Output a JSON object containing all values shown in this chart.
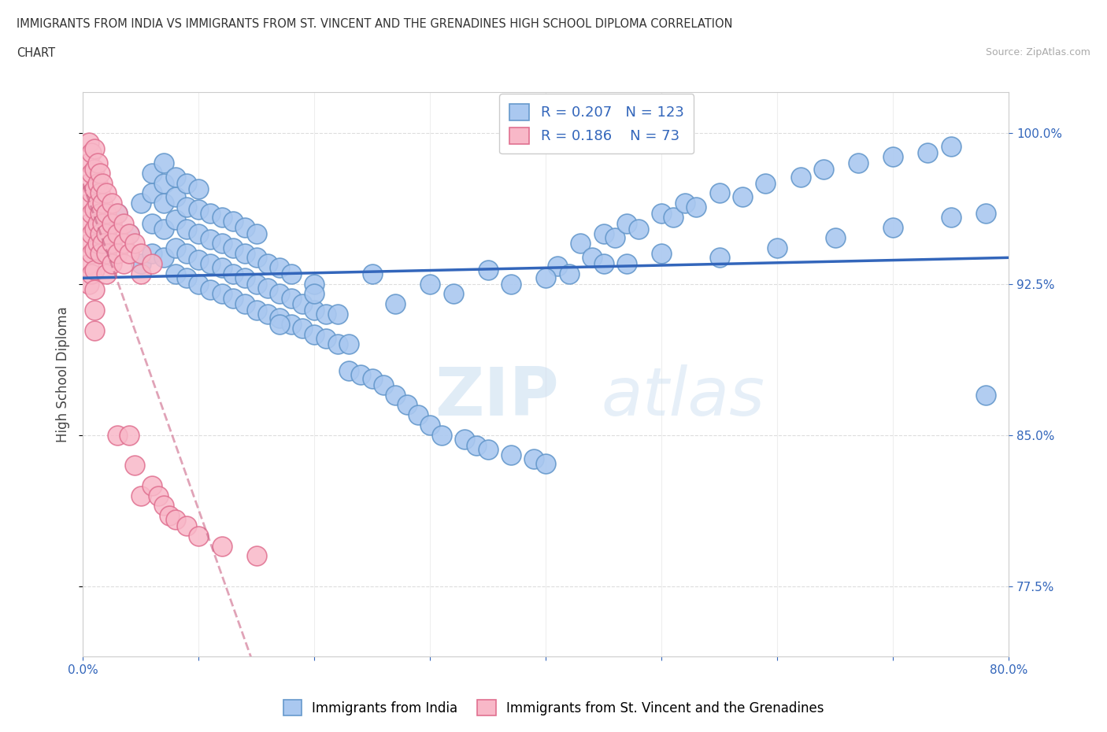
{
  "title_line1": "IMMIGRANTS FROM INDIA VS IMMIGRANTS FROM ST. VINCENT AND THE GRENADINES HIGH SCHOOL DIPLOMA CORRELATION",
  "title_line2": "CHART",
  "source": "Source: ZipAtlas.com",
  "ylabel": "High School Diploma",
  "xlim": [
    0.0,
    0.8
  ],
  "ylim": [
    0.74,
    1.02
  ],
  "india_color": "#aac8f0",
  "india_edge": "#6699cc",
  "india_R": 0.207,
  "india_N": 123,
  "india_line_color": "#3366bb",
  "svg_fill": "#f8b8c8",
  "svg_edge": "#e07090",
  "svg_R": 0.186,
  "svg_N": 73,
  "svg_line_color": "#cc6688",
  "legend_label_india": "Immigrants from India",
  "legend_label_svg": "Immigrants from St. Vincent and the Grenadines",
  "watermark_zip": "ZIP",
  "watermark_atlas": "atlas",
  "india_x": [
    0.02,
    0.03,
    0.04,
    0.05,
    0.05,
    0.06,
    0.06,
    0.06,
    0.06,
    0.07,
    0.07,
    0.07,
    0.07,
    0.07,
    0.08,
    0.08,
    0.08,
    0.08,
    0.08,
    0.09,
    0.09,
    0.09,
    0.09,
    0.09,
    0.1,
    0.1,
    0.1,
    0.1,
    0.1,
    0.11,
    0.11,
    0.11,
    0.11,
    0.12,
    0.12,
    0.12,
    0.12,
    0.13,
    0.13,
    0.13,
    0.13,
    0.14,
    0.14,
    0.14,
    0.14,
    0.15,
    0.15,
    0.15,
    0.15,
    0.16,
    0.16,
    0.16,
    0.17,
    0.17,
    0.17,
    0.18,
    0.18,
    0.18,
    0.19,
    0.19,
    0.2,
    0.2,
    0.2,
    0.21,
    0.21,
    0.22,
    0.23,
    0.23,
    0.24,
    0.25,
    0.26,
    0.27,
    0.28,
    0.29,
    0.3,
    0.31,
    0.33,
    0.34,
    0.35,
    0.37,
    0.39,
    0.4,
    0.41,
    0.43,
    0.44,
    0.45,
    0.46,
    0.47,
    0.48,
    0.5,
    0.51,
    0.52,
    0.53,
    0.55,
    0.57,
    0.59,
    0.62,
    0.64,
    0.67,
    0.7,
    0.73,
    0.75,
    0.78,
    0.2,
    0.25,
    0.3,
    0.35,
    0.4,
    0.45,
    0.5,
    0.55,
    0.6,
    0.65,
    0.7,
    0.75,
    0.78,
    0.17,
    0.22,
    0.27,
    0.32,
    0.37,
    0.42,
    0.47,
    0.52
  ],
  "india_y": [
    0.955,
    0.96,
    0.95,
    0.935,
    0.965,
    0.94,
    0.955,
    0.97,
    0.98,
    0.938,
    0.952,
    0.965,
    0.975,
    0.985,
    0.93,
    0.943,
    0.957,
    0.968,
    0.978,
    0.928,
    0.94,
    0.952,
    0.963,
    0.975,
    0.925,
    0.937,
    0.95,
    0.962,
    0.972,
    0.922,
    0.935,
    0.947,
    0.96,
    0.92,
    0.933,
    0.945,
    0.958,
    0.918,
    0.93,
    0.943,
    0.956,
    0.915,
    0.928,
    0.94,
    0.953,
    0.912,
    0.925,
    0.938,
    0.95,
    0.91,
    0.923,
    0.935,
    0.908,
    0.92,
    0.933,
    0.905,
    0.918,
    0.93,
    0.903,
    0.915,
    0.9,
    0.912,
    0.925,
    0.898,
    0.91,
    0.895,
    0.882,
    0.895,
    0.88,
    0.878,
    0.875,
    0.87,
    0.865,
    0.86,
    0.855,
    0.85,
    0.848,
    0.845,
    0.843,
    0.84,
    0.838,
    0.836,
    0.934,
    0.945,
    0.938,
    0.95,
    0.948,
    0.955,
    0.952,
    0.96,
    0.958,
    0.965,
    0.963,
    0.97,
    0.968,
    0.975,
    0.978,
    0.982,
    0.985,
    0.988,
    0.99,
    0.993,
    0.87,
    0.92,
    0.93,
    0.925,
    0.932,
    0.928,
    0.935,
    0.94,
    0.938,
    0.943,
    0.948,
    0.953,
    0.958,
    0.96,
    0.905,
    0.91,
    0.915,
    0.92,
    0.925,
    0.93,
    0.935,
    0.94
  ],
  "svg_x": [
    0.005,
    0.005,
    0.005,
    0.005,
    0.005,
    0.005,
    0.005,
    0.005,
    0.007,
    0.007,
    0.007,
    0.007,
    0.007,
    0.007,
    0.007,
    0.01,
    0.01,
    0.01,
    0.01,
    0.01,
    0.01,
    0.01,
    0.01,
    0.01,
    0.01,
    0.013,
    0.013,
    0.013,
    0.013,
    0.013,
    0.015,
    0.015,
    0.015,
    0.015,
    0.015,
    0.017,
    0.017,
    0.017,
    0.017,
    0.02,
    0.02,
    0.02,
    0.02,
    0.02,
    0.025,
    0.025,
    0.025,
    0.025,
    0.03,
    0.03,
    0.03,
    0.03,
    0.035,
    0.035,
    0.035,
    0.04,
    0.04,
    0.04,
    0.045,
    0.045,
    0.05,
    0.05,
    0.05,
    0.06,
    0.06,
    0.065,
    0.07,
    0.075,
    0.08,
    0.09,
    0.1,
    0.12,
    0.15
  ],
  "svg_y": [
    0.995,
    0.985,
    0.975,
    0.965,
    0.955,
    0.945,
    0.935,
    0.925,
    0.99,
    0.98,
    0.97,
    0.96,
    0.95,
    0.94,
    0.93,
    0.992,
    0.982,
    0.972,
    0.962,
    0.952,
    0.942,
    0.932,
    0.922,
    0.912,
    0.902,
    0.985,
    0.975,
    0.965,
    0.955,
    0.945,
    0.98,
    0.97,
    0.96,
    0.95,
    0.94,
    0.975,
    0.965,
    0.955,
    0.945,
    0.97,
    0.96,
    0.95,
    0.94,
    0.93,
    0.965,
    0.955,
    0.945,
    0.935,
    0.96,
    0.95,
    0.94,
    0.85,
    0.955,
    0.945,
    0.935,
    0.95,
    0.94,
    0.85,
    0.945,
    0.835,
    0.94,
    0.93,
    0.82,
    0.935,
    0.825,
    0.82,
    0.815,
    0.81,
    0.808,
    0.805,
    0.8,
    0.795,
    0.79
  ]
}
